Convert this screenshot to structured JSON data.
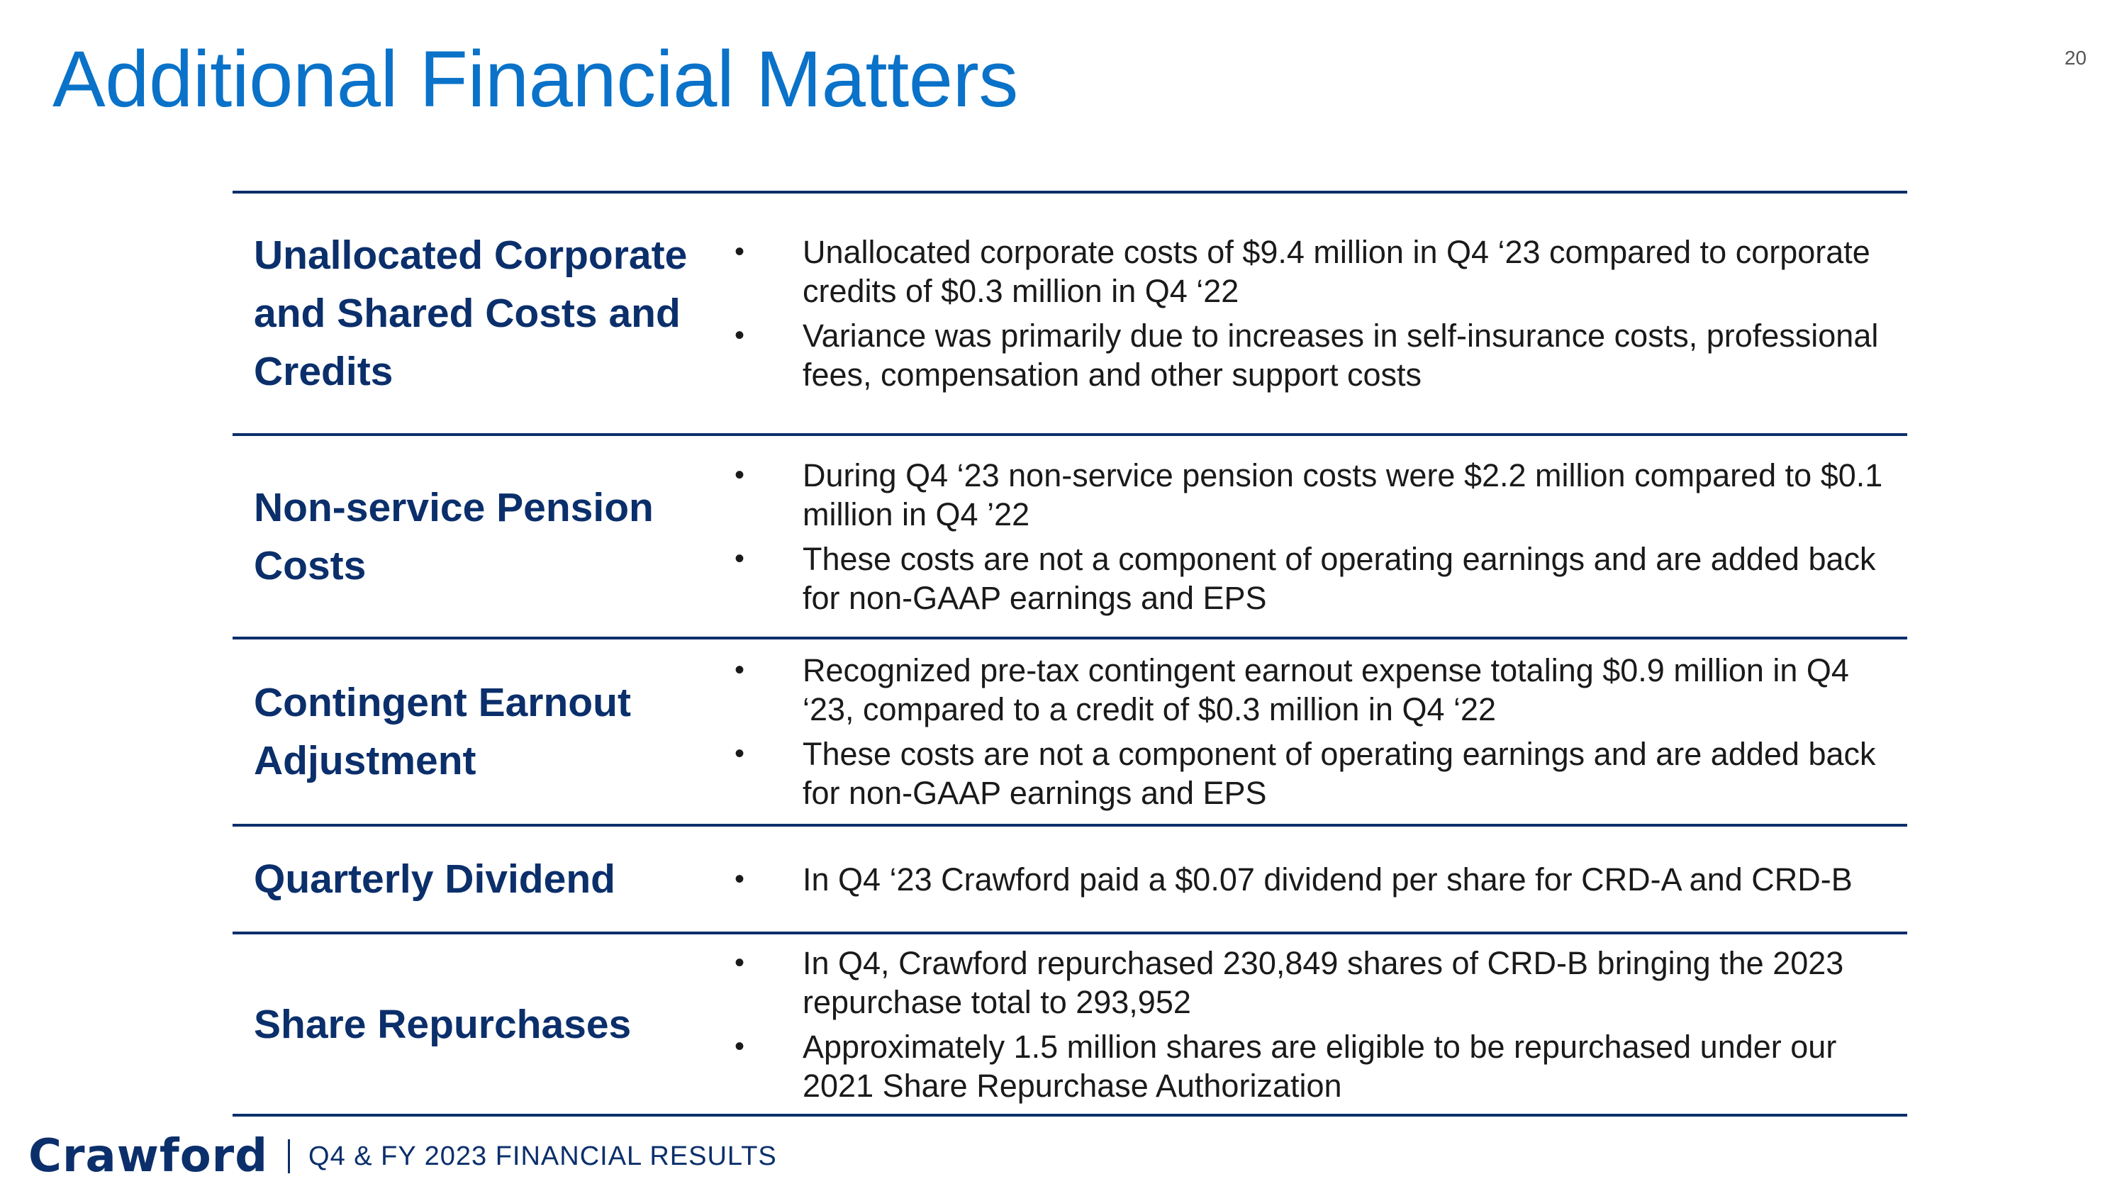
{
  "slide": {
    "title": "Additional Financial Matters",
    "page_number": "20"
  },
  "rows": [
    {
      "label": "Unallocated Corporate and Shared Costs and Credits",
      "points": [
        "Unallocated corporate costs of $9.4 million in Q4 ‘23 compared to corporate credits of $0.3 million in Q4 ‘22",
        "Variance was primarily due to increases in self-insurance costs, professional fees, compensation and other support costs"
      ]
    },
    {
      "label": "Non-service Pension Costs",
      "points": [
        "During Q4 ‘23 non-service pension costs were $2.2 million compared to $0.1 million in Q4 ’22",
        "These costs are not a component of operating earnings and are added back for non-GAAP earnings and EPS"
      ]
    },
    {
      "label": "Contingent Earnout Adjustment",
      "points": [
        "Recognized pre-tax contingent earnout expense totaling $0.9 million in Q4 ‘23, compared to a credit of $0.3 million in Q4 ‘22",
        "These costs are not a component of operating earnings and are added back for non-GAAP earnings and EPS"
      ]
    },
    {
      "label": "Quarterly Dividend",
      "points": [
        "In Q4 ‘23 Crawford paid a $0.07 dividend per share for CRD-A and CRD-B"
      ]
    },
    {
      "label": "Share Repurchases",
      "points": [
        "In Q4, Crawford repurchased 230,849 shares of CRD-B bringing the 2023 repurchase total to 293,952",
        "Approximately 1.5 million shares are eligible to be repurchased under our 2021 Share Repurchase Authorization"
      ]
    }
  ],
  "bullet_glyph": "•",
  "footer": {
    "logo_text": "Crawford",
    "text": "Q4 & FY 2023 FINANCIAL RESULTS"
  },
  "colors": {
    "title": "#0a72c8",
    "navy": "#0b2f6b",
    "body_text": "#1a1a1a"
  }
}
